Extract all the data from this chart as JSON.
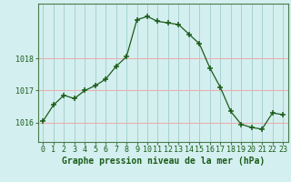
{
  "hours": [
    0,
    1,
    2,
    3,
    4,
    5,
    6,
    7,
    8,
    9,
    10,
    11,
    12,
    13,
    14,
    15,
    16,
    17,
    18,
    19,
    20,
    21,
    22,
    23
  ],
  "pressure": [
    1016.05,
    1016.55,
    1016.85,
    1016.75,
    1017.0,
    1017.15,
    1017.35,
    1017.75,
    1018.05,
    1019.2,
    1019.3,
    1019.15,
    1019.1,
    1019.05,
    1018.75,
    1018.45,
    1017.7,
    1017.1,
    1016.35,
    1015.95,
    1015.85,
    1015.8,
    1016.3,
    1016.25
  ],
  "line_color": "#1a5c1a",
  "marker": "+",
  "marker_size": 4,
  "plot_bg_color": "#d4efef",
  "outer_bg_color": "#d4efef",
  "hgrid_color": "#e8b0b0",
  "vgrid_color": "#a0cccc",
  "axis_label_color": "#1a5c1a",
  "tick_label_color": "#1a5c1a",
  "ylabel_ticks": [
    1016,
    1017,
    1018
  ],
  "ylim": [
    1015.4,
    1019.7
  ],
  "xlim": [
    -0.5,
    23.5
  ],
  "xlabel": "Graphe pression niveau de la mer (hPa)",
  "xtick_labels": [
    "0",
    "1",
    "2",
    "3",
    "4",
    "5",
    "6",
    "7",
    "8",
    "9",
    "10",
    "11",
    "12",
    "13",
    "14",
    "15",
    "16",
    "17",
    "18",
    "19",
    "20",
    "21",
    "22",
    "23"
  ],
  "spine_color": "#4a7a4a",
  "title_fontsize": 7.0,
  "tick_fontsize": 6.0,
  "linewidth": 0.9
}
